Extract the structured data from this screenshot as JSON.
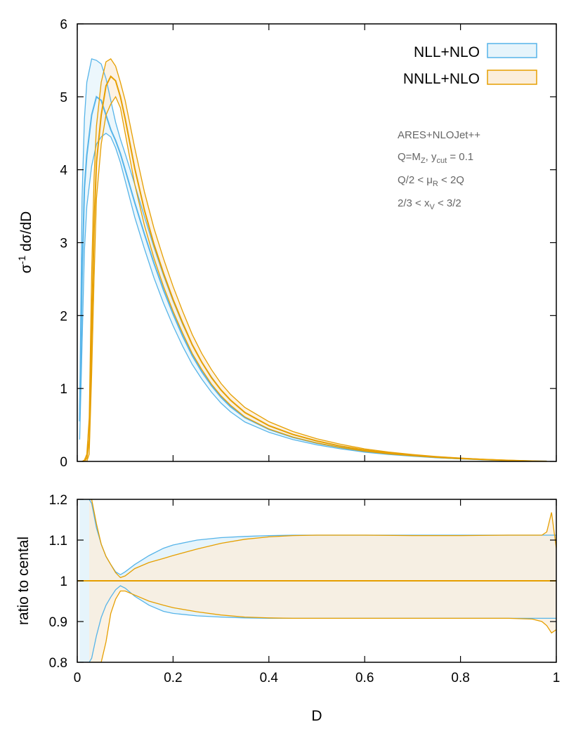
{
  "chart_data": [
    {
      "panel": "main",
      "type": "line",
      "ylabel": "σ",
      "ylabel_sup": "-1",
      "ylabel_rest": " dσ/dD",
      "xlim": [
        0,
        1
      ],
      "ylim": [
        0,
        6
      ],
      "xticks": [
        "0",
        "0.2",
        "0.4",
        "0.6",
        "0.8",
        "1"
      ],
      "yticks": [
        "0",
        "1",
        "2",
        "3",
        "4",
        "5",
        "6"
      ],
      "xtick_values": [
        0,
        0.2,
        0.4,
        0.6,
        0.8,
        1
      ],
      "ytick_values": [
        0,
        1,
        2,
        3,
        4,
        5,
        6
      ],
      "legend": {
        "position": "top-right",
        "entries": [
          {
            "label": "NLL+NLO",
            "stroke": "#56b4e9",
            "fill": "#e6f4fb"
          },
          {
            "label": "NNLL+NLO",
            "stroke": "#e69f00",
            "fill": "#fbeedb"
          }
        ]
      },
      "annotations": [
        {
          "text": "ARES+NLOJet++"
        },
        {
          "parts": [
            [
              "Q=M",
              ""
            ],
            [
              "Z",
              "sub"
            ],
            [
              ", y",
              ""
            ],
            [
              "cut",
              "sub"
            ],
            [
              " = 0.1",
              ""
            ]
          ]
        },
        {
          "parts": [
            [
              "Q/2 < μ",
              ""
            ],
            [
              "R",
              "sub"
            ],
            [
              " < 2Q",
              ""
            ]
          ]
        },
        {
          "parts": [
            [
              "2/3 < x",
              ""
            ],
            [
              "V",
              "sub"
            ],
            [
              " < 3/2",
              ""
            ]
          ]
        }
      ],
      "series": [
        {
          "name": "NLL+NLO",
          "color": "#56b4e9",
          "fill": "#e6f4fb",
          "x": [
            0.005,
            0.01,
            0.015,
            0.02,
            0.03,
            0.04,
            0.05,
            0.06,
            0.07,
            0.08,
            0.09,
            0.1,
            0.12,
            0.14,
            0.16,
            0.18,
            0.2,
            0.22,
            0.24,
            0.26,
            0.28,
            0.3,
            0.32,
            0.35,
            0.4,
            0.45,
            0.5,
            0.55,
            0.6,
            0.65,
            0.7,
            0.75,
            0.8,
            0.85,
            0.9,
            0.95,
            0.98
          ],
          "central": [
            0.55,
            2.5,
            3.75,
            4.2,
            4.75,
            5.0,
            4.95,
            4.75,
            4.55,
            4.4,
            4.22,
            4.0,
            3.55,
            3.12,
            2.72,
            2.35,
            2.02,
            1.72,
            1.45,
            1.23,
            1.04,
            0.88,
            0.75,
            0.6,
            0.44,
            0.33,
            0.25,
            0.19,
            0.14,
            0.105,
            0.078,
            0.055,
            0.038,
            0.024,
            0.013,
            0.005,
            0.001
          ],
          "upper": [
            0.7,
            3.6,
            4.7,
            5.2,
            5.52,
            5.5,
            5.45,
            5.25,
            4.95,
            4.65,
            4.42,
            4.22,
            3.8,
            3.36,
            2.94,
            2.55,
            2.2,
            1.88,
            1.6,
            1.36,
            1.16,
            0.98,
            0.84,
            0.67,
            0.49,
            0.37,
            0.28,
            0.21,
            0.156,
            0.117,
            0.087,
            0.061,
            0.042,
            0.027,
            0.014,
            0.006,
            0.001
          ],
          "lower": [
            0.3,
            1.6,
            2.9,
            3.5,
            4.05,
            4.35,
            4.45,
            4.5,
            4.45,
            4.3,
            4.1,
            3.85,
            3.35,
            2.92,
            2.52,
            2.17,
            1.86,
            1.58,
            1.33,
            1.13,
            0.95,
            0.8,
            0.68,
            0.54,
            0.4,
            0.3,
            0.227,
            0.172,
            0.127,
            0.095,
            0.071,
            0.05,
            0.034,
            0.022,
            0.012,
            0.004,
            0.001
          ]
        },
        {
          "name": "NNLL+NLO",
          "color": "#e69f00",
          "fill": "#fbeedb",
          "x": [
            0.01,
            0.015,
            0.02,
            0.025,
            0.03,
            0.035,
            0.04,
            0.05,
            0.06,
            0.07,
            0.08,
            0.09,
            0.1,
            0.12,
            0.14,
            0.16,
            0.18,
            0.2,
            0.22,
            0.24,
            0.26,
            0.28,
            0.3,
            0.32,
            0.35,
            0.4,
            0.45,
            0.5,
            0.55,
            0.6,
            0.65,
            0.7,
            0.75,
            0.8,
            0.85,
            0.9,
            0.95,
            0.98
          ],
          "central": [
            0.0,
            0.0,
            0.05,
            0.3,
            1.8,
            3.2,
            4.1,
            4.75,
            5.15,
            5.28,
            5.22,
            5.0,
            4.7,
            4.02,
            3.45,
            2.98,
            2.58,
            2.22,
            1.9,
            1.6,
            1.36,
            1.15,
            0.98,
            0.84,
            0.67,
            0.49,
            0.37,
            0.28,
            0.21,
            0.155,
            0.115,
            0.085,
            0.06,
            0.041,
            0.026,
            0.014,
            0.005,
            0.001
          ],
          "upper": [
            0.0,
            0.02,
            0.1,
            0.6,
            2.6,
            3.9,
            4.6,
            5.2,
            5.48,
            5.52,
            5.42,
            5.2,
            4.95,
            4.3,
            3.7,
            3.2,
            2.78,
            2.4,
            2.06,
            1.74,
            1.48,
            1.26,
            1.07,
            0.92,
            0.74,
            0.545,
            0.41,
            0.31,
            0.235,
            0.172,
            0.128,
            0.094,
            0.067,
            0.046,
            0.029,
            0.016,
            0.006,
            0.002
          ],
          "lower": [
            0.0,
            0.0,
            0.0,
            0.1,
            1.2,
            2.5,
            3.6,
            4.35,
            4.75,
            4.9,
            5.0,
            4.85,
            4.5,
            3.8,
            3.24,
            2.79,
            2.4,
            2.06,
            1.76,
            1.48,
            1.26,
            1.06,
            0.9,
            0.77,
            0.61,
            0.445,
            0.335,
            0.253,
            0.19,
            0.14,
            0.104,
            0.077,
            0.054,
            0.037,
            0.023,
            0.012,
            0.004,
            0.001
          ]
        }
      ]
    },
    {
      "panel": "ratio",
      "type": "area",
      "xlabel": "D",
      "ylabel": "ratio to cental",
      "xlim": [
        0,
        1
      ],
      "ylim": [
        0.8,
        1.2
      ],
      "xticks": [
        "0",
        "0.2",
        "0.4",
        "0.6",
        "0.8",
        "1"
      ],
      "yticks": [
        "0.8",
        "0.9",
        "1",
        "1.1",
        "1.2"
      ],
      "xtick_values": [
        0,
        0.2,
        0.4,
        0.6,
        0.8,
        1
      ],
      "ytick_values": [
        0.8,
        0.9,
        1.0,
        1.1,
        1.2
      ],
      "series": [
        {
          "name": "NLL+NLO",
          "color": "#56b4e9",
          "fill": "#e6f4fb",
          "x": [
            0.005,
            0.015,
            0.025,
            0.03,
            0.04,
            0.05,
            0.06,
            0.07,
            0.08,
            0.09,
            0.1,
            0.12,
            0.15,
            0.18,
            0.2,
            0.25,
            0.3,
            0.35,
            0.4,
            0.45,
            0.5,
            0.6,
            0.7,
            0.8,
            0.9,
            0.95,
            0.98,
            1.0
          ],
          "upper": [
            1.2,
            1.2,
            1.2,
            1.19,
            1.13,
            1.09,
            1.06,
            1.04,
            1.022,
            1.015,
            1.022,
            1.04,
            1.062,
            1.08,
            1.088,
            1.1,
            1.106,
            1.109,
            1.111,
            1.112,
            1.112,
            1.112,
            1.112,
            1.112,
            1.112,
            1.112,
            1.112,
            1.112
          ],
          "lower": [
            0.8,
            0.8,
            0.8,
            0.81,
            0.865,
            0.91,
            0.94,
            0.96,
            0.978,
            0.988,
            0.982,
            0.962,
            0.94,
            0.925,
            0.92,
            0.914,
            0.911,
            0.909,
            0.908,
            0.908,
            0.908,
            0.908,
            0.908,
            0.908,
            0.908,
            0.908,
            0.908,
            0.908
          ]
        },
        {
          "name": "NNLL+NLO",
          "color": "#e69f00",
          "fill": "#fbeedb",
          "x": [
            0.025,
            0.03,
            0.04,
            0.05,
            0.06,
            0.07,
            0.08,
            0.09,
            0.1,
            0.12,
            0.15,
            0.18,
            0.2,
            0.25,
            0.3,
            0.35,
            0.4,
            0.45,
            0.5,
            0.6,
            0.7,
            0.8,
            0.9,
            0.95,
            0.97,
            0.98,
            0.99,
            1.0
          ],
          "upper": [
            1.2,
            1.2,
            1.14,
            1.09,
            1.06,
            1.04,
            1.02,
            1.008,
            1.012,
            1.03,
            1.045,
            1.055,
            1.062,
            1.078,
            1.092,
            1.102,
            1.108,
            1.111,
            1.112,
            1.112,
            1.111,
            1.111,
            1.112,
            1.112,
            1.112,
            1.12,
            1.168,
            1.08
          ],
          "lower": [
            0.8,
            0.8,
            0.8,
            0.8,
            0.85,
            0.92,
            0.955,
            0.975,
            0.975,
            0.965,
            0.95,
            0.94,
            0.934,
            0.924,
            0.916,
            0.911,
            0.909,
            0.908,
            0.908,
            0.908,
            0.908,
            0.908,
            0.908,
            0.906,
            0.9,
            0.89,
            0.872,
            0.88
          ]
        }
      ],
      "reference": {
        "value": 1.0,
        "color": "#e69f00"
      },
      "nll_band_start": {
        "x": [
          0.005,
          0.025
        ],
        "fill": "#e6f4fb"
      }
    }
  ]
}
